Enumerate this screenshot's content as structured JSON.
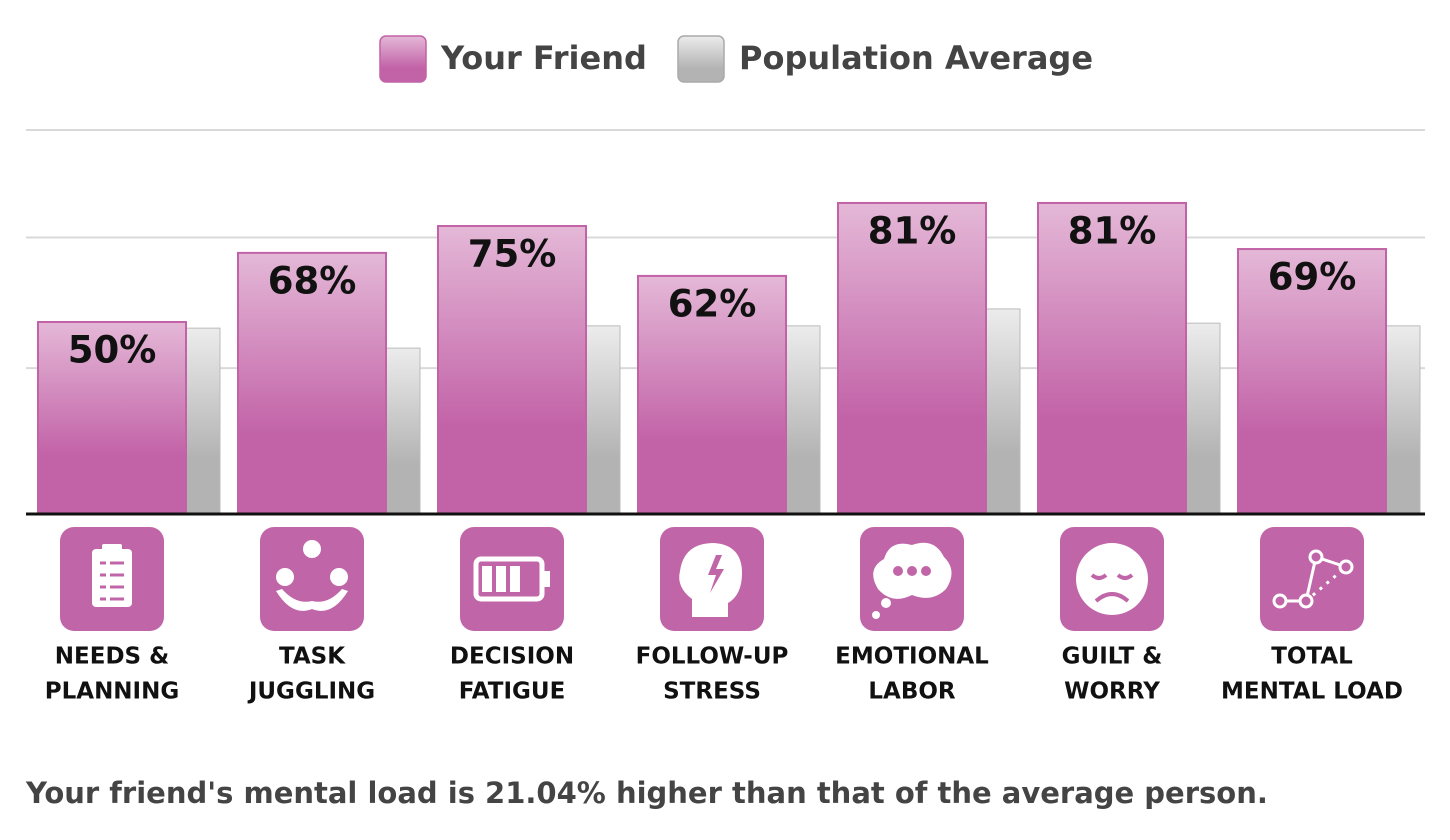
{
  "chart_data": {
    "type": "bar",
    "categories": [
      [
        "NEEDS &",
        "PLANNING"
      ],
      [
        "TASK",
        "JUGGLING"
      ],
      [
        "DECISION",
        "FATIGUE"
      ],
      [
        "FOLLOW-UP",
        "STRESS"
      ],
      [
        "EMOTIONAL",
        "LABOR"
      ],
      [
        "GUILT &",
        "WORRY"
      ],
      [
        "TOTAL",
        "MENTAL LOAD"
      ]
    ],
    "series": [
      {
        "name": "Your Friend",
        "color": "#c262a7",
        "values": [
          50,
          68,
          75,
          62,
          81,
          81,
          69
        ],
        "value_labels": [
          "50%",
          "68%",
          "75%",
          "62%",
          "81%",
          "81%",
          "69%"
        ]
      },
      {
        "name": "Population Average",
        "color": "#b3b3b3",
        "values": [
          48.4,
          43.2,
          49,
          49,
          53.4,
          49.7,
          49
        ]
      }
    ],
    "ylim": [
      0,
      100
    ],
    "ygrid": [
      38,
      72,
      100
    ],
    "grid": true,
    "icon_color": "#c066a8",
    "footnote": "Your friend's mental load is 21.04% higher than that of the average person."
  }
}
